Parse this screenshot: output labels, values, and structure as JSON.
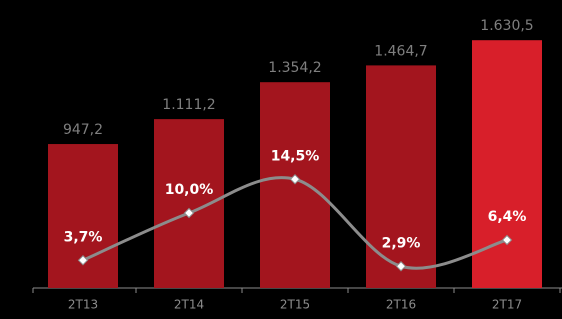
{
  "chart_data": {
    "type": "bar-line",
    "categories": [
      "2T13",
      "2T14",
      "2T15",
      "2T16",
      "2T17"
    ],
    "series": [
      {
        "type": "bar",
        "values": [
          947.2,
          1111.2,
          1354.2,
          1464.7,
          1630.5
        ],
        "value_labels": [
          "947,2",
          "1.111,2",
          "1.354,2",
          "1.464,7",
          "1.630,5"
        ],
        "colors": [
          "#a3151e",
          "#a3151e",
          "#a3151e",
          "#a3151e",
          "#d81f2a"
        ]
      },
      {
        "type": "line",
        "axis": "y2",
        "values": [
          3.7,
          10.0,
          14.5,
          2.9,
          6.4
        ],
        "value_labels": [
          "3,7%",
          "10,0%",
          "14,5%",
          "2,9%",
          "6,4%"
        ],
        "color": "#8c8c8c",
        "marker_color": "#ffffff"
      }
    ],
    "ylim": [
      0,
      1895
    ],
    "y2lim": [
      0,
      38.4
    ]
  }
}
